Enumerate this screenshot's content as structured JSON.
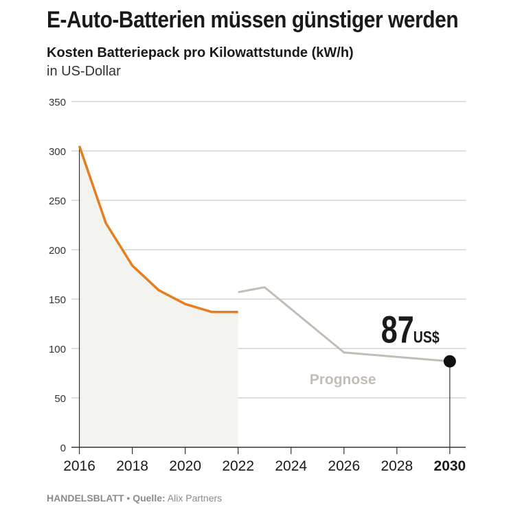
{
  "header": {
    "title": "E-Auto-Batterien müssen günstiger werden",
    "subtitle": "Kosten Batteriepack pro Kilowattstunde (kW/h)",
    "unit": "in US-Dollar"
  },
  "footer": {
    "brand": "HANDELSBLATT",
    "separator": " • ",
    "source_label": "Quelle:",
    "source": " Alix Partners"
  },
  "colors": {
    "actual": "#e67e1f",
    "forecast": "#c4bdb5",
    "area": "#f3f3ef",
    "grid": "#cccccc",
    "text": "#1a1a1a"
  },
  "chart_data": {
    "type": "line",
    "ylim": [
      0,
      350
    ],
    "yticks": [
      0,
      50,
      100,
      150,
      200,
      250,
      300,
      350
    ],
    "xlim": [
      2015.7,
      2030.6
    ],
    "xticks": [
      2016,
      2018,
      2020,
      2022,
      2024,
      2026,
      2028,
      2030
    ],
    "highlight_tick": 2030,
    "grid": true,
    "series": [
      {
        "kind": "actual",
        "x": [
          2016,
          2017,
          2018,
          2019,
          2020,
          2021,
          2022
        ],
        "y": [
          305,
          227,
          184,
          159,
          145,
          137,
          137
        ]
      },
      {
        "kind": "forecast",
        "x": [
          2022,
          2023,
          2026,
          2030
        ],
        "y": [
          157,
          162,
          96,
          87
        ]
      }
    ],
    "annotations": {
      "forecast_label": "Prognose",
      "end_value": "87",
      "end_unit": "US$",
      "end_x": 2030,
      "end_y": 87
    }
  }
}
